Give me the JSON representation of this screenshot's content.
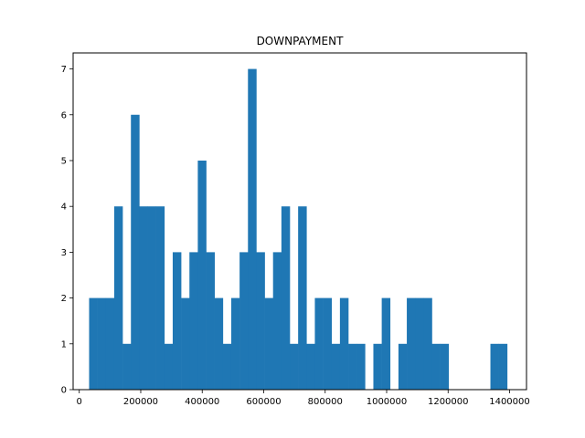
{
  "chart_data": {
    "type": "bar",
    "title": "DOWNPAYMENT",
    "xlabel": "",
    "ylabel": "",
    "xlim": [
      -20000,
      1455000
    ],
    "ylim": [
      0,
      7.35
    ],
    "grid": false,
    "color": "#1f77b4",
    "bin_width": 27200,
    "bin_start": 32000,
    "counts": [
      2,
      2,
      2,
      4,
      1,
      6,
      4,
      4,
      4,
      1,
      3,
      2,
      3,
      5,
      3,
      2,
      1,
      2,
      3,
      7,
      3,
      2,
      3,
      4,
      1,
      4,
      1,
      2,
      2,
      1,
      2,
      1,
      1,
      0,
      1,
      2,
      0,
      1,
      2,
      2,
      2,
      1,
      1,
      0,
      0,
      0,
      0,
      0,
      1,
      1
    ],
    "x_ticks": [
      0,
      200000,
      400000,
      600000,
      800000,
      1000000,
      1200000,
      1400000
    ],
    "x_tick_labels": [
      "0",
      "200000",
      "400000",
      "600000",
      "800000",
      "1000000",
      "1200000",
      "1400000"
    ],
    "y_ticks": [
      0,
      1,
      2,
      3,
      4,
      5,
      6,
      7
    ],
    "y_tick_labels": [
      "0",
      "1",
      "2",
      "3",
      "4",
      "5",
      "6",
      "7"
    ]
  }
}
